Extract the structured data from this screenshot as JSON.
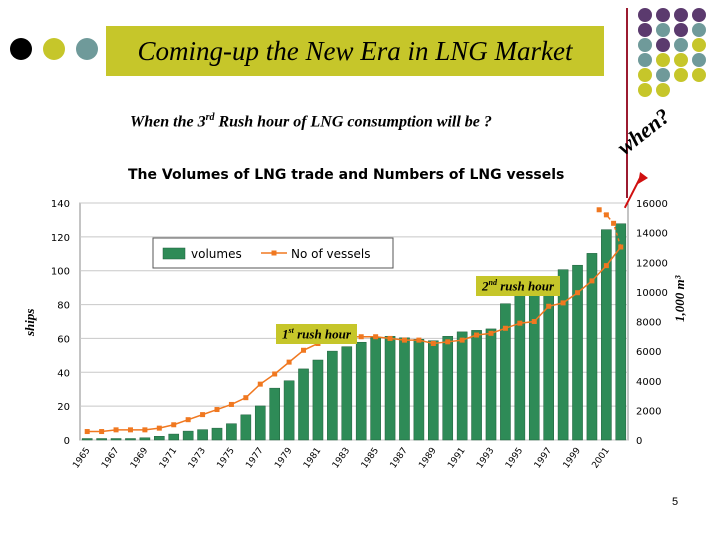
{
  "slide": {
    "title": "Coming-up the New Era in LNG Market",
    "subtitle_prefix": "When the 3",
    "subtitle_sup": "rd",
    "subtitle_suffix": " Rush hour of LNG consumption will be ?",
    "when_text": "when?",
    "page_number": "5"
  },
  "callouts": {
    "second": {
      "num": "2",
      "sup": "nd",
      "text": " rush hour"
    },
    "first": {
      "num": "1",
      "sup": "st",
      "text": " rush hour"
    }
  },
  "colors": {
    "title_bg": "#c6c62a",
    "bar_fill": "#2e8b57",
    "line_color": "#f07820",
    "accent_line": "#9b1b30"
  },
  "decor_dots": {
    "left_row": [
      "#000000",
      "#c6c62a",
      "#6f9a9a"
    ],
    "grid": [
      [
        "#5b3a6e",
        "#5b3a6e",
        "#5b3a6e",
        "#5b3a6e"
      ],
      [
        "#5b3a6e",
        "#6f9a9a",
        "#5b3a6e",
        "#6f9a9a"
      ],
      [
        "#6f9a9a",
        "#5b3a6e",
        "#6f9a9a",
        "#c6c62a"
      ],
      [
        "#6f9a9a",
        "#c6c62a",
        "#c6c62a",
        "#6f9a9a"
      ],
      [
        "#c6c62a",
        "#6f9a9a",
        "#c6c62a",
        "#c6c62a"
      ],
      [
        "#c6c62a",
        "#c6c62a",
        "",
        ""
      ]
    ]
  },
  "chart_data": {
    "type": "bar",
    "title": "The Volumes of LNG trade and Numbers of LNG vessels",
    "ylabel_left": "ships",
    "ylabel_right": "1,000 m³",
    "ylim_left": [
      0,
      140
    ],
    "ylim_right": [
      0,
      16000
    ],
    "yticks_left": [
      "0",
      "20",
      "40",
      "60",
      "80",
      "100",
      "120",
      "140"
    ],
    "yticks_right": [
      "0",
      "2000",
      "4000",
      "6000",
      "8000",
      "10000",
      "12000",
      "14000",
      "16000"
    ],
    "categories": [
      "1965",
      "1966",
      "1967",
      "1968",
      "1969",
      "1970",
      "1971",
      "1972",
      "1973",
      "1974",
      "1975",
      "1976",
      "1977",
      "1978",
      "1979",
      "1980",
      "1981",
      "1982",
      "1983",
      "1984",
      "1985",
      "1986",
      "1987",
      "1988",
      "1989",
      "1990",
      "1991",
      "1992",
      "1993",
      "1994",
      "1995",
      "1996",
      "1997",
      "1998",
      "1999",
      "2000",
      "2001",
      "2002"
    ],
    "xtick_labels": [
      "1965",
      "",
      "1967",
      "",
      "1969",
      "",
      "1971",
      "",
      "1973",
      "",
      "1975",
      "",
      "1977",
      "",
      "1979",
      "",
      "1981",
      "",
      "1983",
      "",
      "1985",
      "",
      "1987",
      "",
      "1989",
      "",
      "1991",
      "",
      "1993",
      "",
      "1995",
      "",
      "1997",
      "",
      "1999",
      "",
      "2001",
      ""
    ],
    "legend": [
      "volumes",
      "No of vessels"
    ],
    "legend_position": "top-left",
    "series": [
      {
        "name": "volumes",
        "type": "bar",
        "axis": "right",
        "values": [
          100,
          100,
          100,
          100,
          150,
          250,
          400,
          600,
          700,
          800,
          1100,
          1700,
          2300,
          3500,
          4000,
          4800,
          5400,
          6000,
          6300,
          6600,
          6900,
          7000,
          6900,
          6800,
          6700,
          7000,
          7300,
          7400,
          7500,
          9200,
          10000,
          10500,
          11000,
          11500,
          11800,
          12600,
          14200,
          14600
        ]
      },
      {
        "name": "No of vessels",
        "type": "line",
        "axis": "left",
        "values": [
          5,
          5,
          6,
          6,
          6,
          7,
          9,
          12,
          15,
          18,
          21,
          25,
          33,
          39,
          46,
          53,
          57,
          60,
          61,
          61,
          61,
          60,
          59,
          59,
          57,
          58,
          59,
          62,
          63,
          66,
          69,
          70,
          79,
          81,
          87,
          94,
          103,
          114
        ]
      }
    ],
    "axis_extension": {
      "values": [
        128,
        133,
        136
      ]
    }
  }
}
